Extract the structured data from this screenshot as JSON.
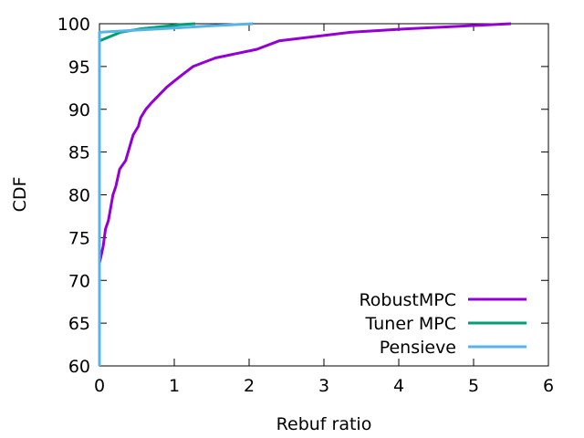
{
  "chart_data": {
    "type": "line",
    "title": "",
    "xlabel": "Rebuf ratio",
    "ylabel": "CDF",
    "xlim": [
      0,
      6
    ],
    "ylim": [
      60,
      100
    ],
    "xticks": [
      0,
      1,
      2,
      3,
      4,
      5,
      6
    ],
    "yticks": [
      60,
      65,
      70,
      75,
      80,
      85,
      90,
      95,
      100
    ],
    "grid": false,
    "legend_position": "bottom-right",
    "series": [
      {
        "name": "RobustMPC",
        "color": "#9400d3",
        "points": [
          [
            0,
            60
          ],
          [
            0,
            72
          ],
          [
            0.05,
            74
          ],
          [
            0.08,
            76
          ],
          [
            0.12,
            77
          ],
          [
            0.18,
            80
          ],
          [
            0.22,
            81
          ],
          [
            0.27,
            83
          ],
          [
            0.35,
            84
          ],
          [
            0.4,
            85.5
          ],
          [
            0.45,
            87
          ],
          [
            0.52,
            88
          ],
          [
            0.55,
            89
          ],
          [
            0.62,
            90
          ],
          [
            0.7,
            90.8
          ],
          [
            0.8,
            91.7
          ],
          [
            0.9,
            92.6
          ],
          [
            1.0,
            93.3
          ],
          [
            1.1,
            94
          ],
          [
            1.25,
            95
          ],
          [
            1.55,
            96
          ],
          [
            2.1,
            97
          ],
          [
            2.4,
            98
          ],
          [
            3.35,
            99
          ],
          [
            4.1,
            99.4
          ],
          [
            5.5,
            100
          ]
        ]
      },
      {
        "name": "Tuner MPC",
        "color": "#009e73",
        "points": [
          [
            0,
            60
          ],
          [
            0,
            98
          ],
          [
            0.28,
            99
          ],
          [
            0.55,
            99.4
          ],
          [
            1.1,
            99.9
          ],
          [
            1.28,
            100
          ]
        ]
      },
      {
        "name": "Pensieve",
        "color": "#56b4e9",
        "points": [
          [
            0,
            60
          ],
          [
            0,
            99
          ],
          [
            0.5,
            99.25
          ],
          [
            1.0,
            99.5
          ],
          [
            1.5,
            99.75
          ],
          [
            2.05,
            100
          ]
        ]
      }
    ]
  }
}
